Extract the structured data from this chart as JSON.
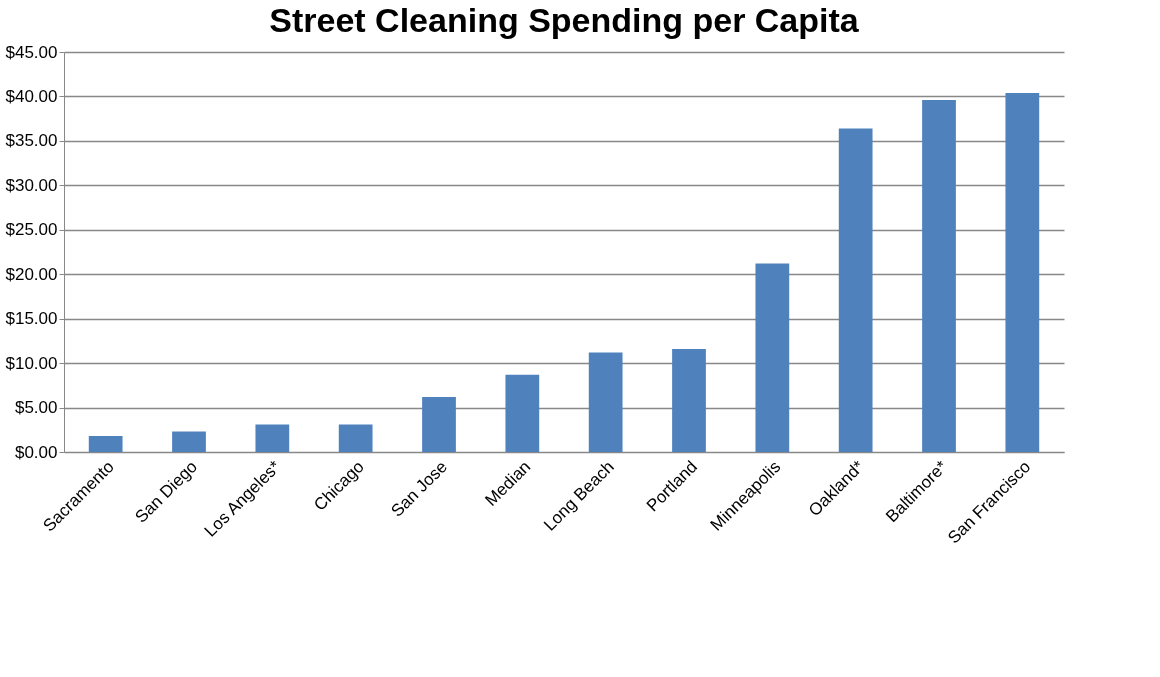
{
  "chart_data": {
    "type": "bar",
    "title": "Street Cleaning Spending per Capita",
    "categories": [
      "Sacramento",
      "San Diego",
      "Los Angeles*",
      "Chicago",
      "San Jose",
      "Median",
      "Long Beach",
      "Portland",
      "Minneapolis",
      "Oakland*",
      "Baltimore*",
      "San Francisco"
    ],
    "values": [
      1.8,
      2.3,
      3.1,
      3.1,
      6.2,
      8.7,
      11.2,
      11.6,
      21.2,
      36.4,
      39.6,
      40.4
    ],
    "color": "#4f81bd",
    "ylim": [
      0,
      45
    ],
    "yticks": [
      {
        "value": 0,
        "label": "$0.00"
      },
      {
        "value": 5,
        "label": "$5.00"
      },
      {
        "value": 10,
        "label": "$10.00"
      },
      {
        "value": 15,
        "label": "$15.00"
      },
      {
        "value": 20,
        "label": "$20.00"
      },
      {
        "value": 25,
        "label": "$25.00"
      },
      {
        "value": 30,
        "label": "$30.00"
      },
      {
        "value": 35,
        "label": "$35.00"
      },
      {
        "value": 40,
        "label": "$40.00"
      },
      {
        "value": 45,
        "label": "$45.00"
      }
    ],
    "grid": "y"
  }
}
